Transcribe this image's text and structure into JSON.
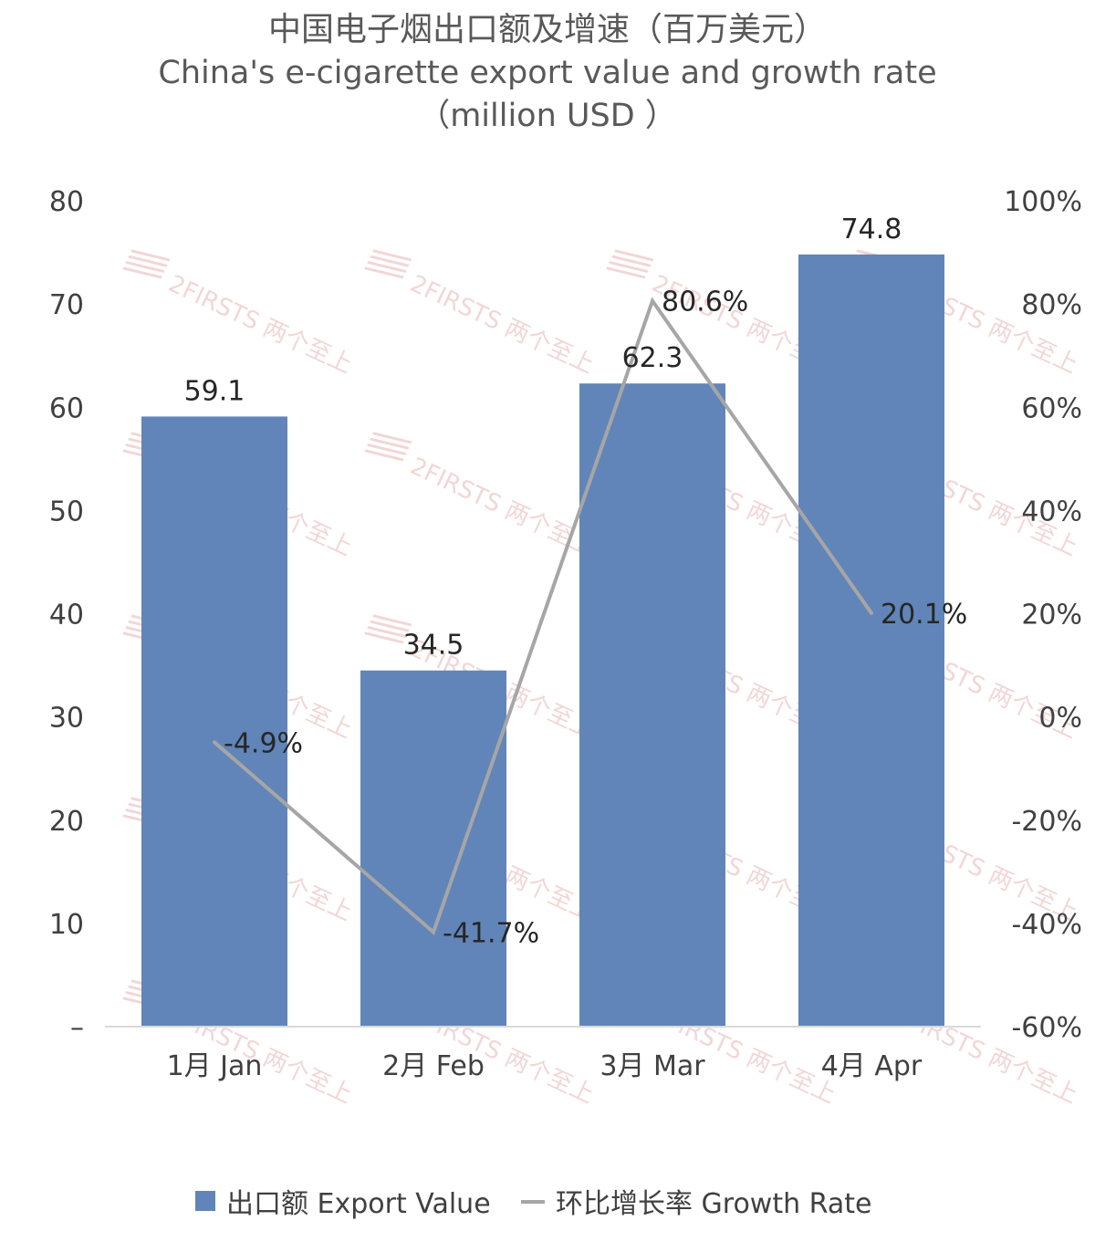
{
  "chart_data": {
    "type": "bar",
    "title": "中国电子烟出口额及增速（百万美元）",
    "subtitle": "China's e-cigarette export value and growth rate",
    "subtitle_unit": "（million USD ）",
    "categories": [
      "1月 Jan",
      "2月 Feb",
      "3月 Mar",
      "4月 Apr"
    ],
    "series": [
      {
        "name": "出口额 Export Value",
        "type": "bar",
        "axis": "left",
        "color": "#6185b8",
        "values": [
          59.1,
          34.5,
          62.3,
          74.8
        ],
        "labels": [
          "59.1",
          "34.5",
          "62.3",
          "74.8"
        ]
      },
      {
        "name": "环比增长率 Growth Rate",
        "type": "line",
        "axis": "right",
        "color": "#a6a6a6",
        "values": [
          -4.9,
          -41.7,
          80.6,
          20.1
        ],
        "labels": [
          "-4.9%",
          "-41.7%",
          "80.6%",
          "20.1%"
        ]
      }
    ],
    "y_left": {
      "range": [
        0,
        80
      ],
      "ticks": [
        0,
        10,
        20,
        30,
        40,
        50,
        60,
        70,
        80
      ],
      "tick_labels": [
        "–",
        "10",
        "20",
        "30",
        "40",
        "50",
        "60",
        "70",
        "80"
      ]
    },
    "y_right": {
      "range": [
        -60,
        100
      ],
      "ticks": [
        -60,
        -40,
        -20,
        0,
        20,
        40,
        60,
        80,
        100
      ],
      "tick_labels": [
        "-60%",
        "-40%",
        "-20%",
        "0%",
        "20%",
        "40%",
        "60%",
        "80%",
        "100%"
      ]
    },
    "grid": false,
    "legend": "bottom-center",
    "watermark": {
      "text": "2FIRSTS 两个至上",
      "color": "#eec9c9"
    }
  }
}
